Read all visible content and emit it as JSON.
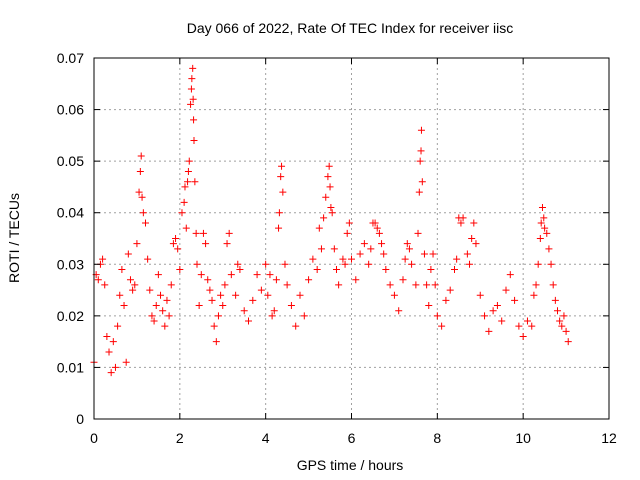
{
  "chart_data": {
    "type": "scatter",
    "title": "Day 066 of 2022, Rate Of TEC Index for receiver iisc",
    "xlabel": "GPS time / hours",
    "ylabel": "ROTI / TECUs",
    "xlim": [
      0,
      12
    ],
    "ylim": [
      0,
      0.07
    ],
    "x_ticks": [
      "0",
      "2",
      "4",
      "6",
      "8",
      "10",
      "12"
    ],
    "y_ticks": [
      "0",
      "0.01",
      "0.02",
      "0.03",
      "0.04",
      "0.05",
      "0.06",
      "0.07"
    ],
    "grid": true,
    "marker": "+",
    "color": "#ff0000",
    "series": [
      {
        "name": "ROTI",
        "points": [
          [
            0.0,
            0.011
          ],
          [
            0.05,
            0.028
          ],
          [
            0.1,
            0.027
          ],
          [
            0.15,
            0.03
          ],
          [
            0.2,
            0.031
          ],
          [
            0.25,
            0.026
          ],
          [
            0.3,
            0.016
          ],
          [
            0.35,
            0.013
          ],
          [
            0.4,
            0.009
          ],
          [
            0.45,
            0.015
          ],
          [
            0.5,
            0.01
          ],
          [
            0.55,
            0.018
          ],
          [
            0.6,
            0.024
          ],
          [
            0.65,
            0.029
          ],
          [
            0.7,
            0.022
          ],
          [
            0.75,
            0.011
          ],
          [
            0.8,
            0.032
          ],
          [
            0.85,
            0.027
          ],
          [
            0.9,
            0.025
          ],
          [
            0.95,
            0.026
          ],
          [
            1.0,
            0.034
          ],
          [
            1.05,
            0.044
          ],
          [
            1.08,
            0.048
          ],
          [
            1.1,
            0.051
          ],
          [
            1.12,
            0.043
          ],
          [
            1.15,
            0.04
          ],
          [
            1.2,
            0.038
          ],
          [
            1.25,
            0.031
          ],
          [
            1.3,
            0.025
          ],
          [
            1.35,
            0.02
          ],
          [
            1.4,
            0.019
          ],
          [
            1.45,
            0.022
          ],
          [
            1.5,
            0.028
          ],
          [
            1.55,
            0.024
          ],
          [
            1.6,
            0.021
          ],
          [
            1.65,
            0.018
          ],
          [
            1.7,
            0.023
          ],
          [
            1.75,
            0.02
          ],
          [
            1.8,
            0.026
          ],
          [
            1.85,
            0.034
          ],
          [
            1.9,
            0.035
          ],
          [
            1.95,
            0.033
          ],
          [
            2.0,
            0.029
          ],
          [
            2.05,
            0.04
          ],
          [
            2.1,
            0.042
          ],
          [
            2.12,
            0.045
          ],
          [
            2.15,
            0.037
          ],
          [
            2.18,
            0.046
          ],
          [
            2.2,
            0.048
          ],
          [
            2.22,
            0.05
          ],
          [
            2.25,
            0.061
          ],
          [
            2.27,
            0.064
          ],
          [
            2.28,
            0.066
          ],
          [
            2.3,
            0.068
          ],
          [
            2.31,
            0.062
          ],
          [
            2.32,
            0.058
          ],
          [
            2.33,
            0.054
          ],
          [
            2.35,
            0.046
          ],
          [
            2.38,
            0.036
          ],
          [
            2.4,
            0.03
          ],
          [
            2.45,
            0.022
          ],
          [
            2.5,
            0.028
          ],
          [
            2.55,
            0.036
          ],
          [
            2.6,
            0.034
          ],
          [
            2.65,
            0.027
          ],
          [
            2.7,
            0.025
          ],
          [
            2.75,
            0.023
          ],
          [
            2.8,
            0.018
          ],
          [
            2.85,
            0.015
          ],
          [
            2.9,
            0.02
          ],
          [
            2.95,
            0.024
          ],
          [
            3.0,
            0.022
          ],
          [
            3.05,
            0.026
          ],
          [
            3.1,
            0.034
          ],
          [
            3.15,
            0.036
          ],
          [
            3.2,
            0.028
          ],
          [
            3.3,
            0.024
          ],
          [
            3.35,
            0.03
          ],
          [
            3.4,
            0.029
          ],
          [
            3.5,
            0.021
          ],
          [
            3.6,
            0.019
          ],
          [
            3.7,
            0.023
          ],
          [
            3.8,
            0.028
          ],
          [
            3.9,
            0.025
          ],
          [
            4.0,
            0.03
          ],
          [
            4.05,
            0.024
          ],
          [
            4.1,
            0.028
          ],
          [
            4.15,
            0.02
          ],
          [
            4.2,
            0.021
          ],
          [
            4.25,
            0.027
          ],
          [
            4.3,
            0.037
          ],
          [
            4.32,
            0.04
          ],
          [
            4.35,
            0.047
          ],
          [
            4.37,
            0.049
          ],
          [
            4.4,
            0.044
          ],
          [
            4.45,
            0.03
          ],
          [
            4.5,
            0.026
          ],
          [
            4.6,
            0.022
          ],
          [
            4.7,
            0.018
          ],
          [
            4.8,
            0.024
          ],
          [
            4.9,
            0.02
          ],
          [
            5.0,
            0.027
          ],
          [
            5.1,
            0.031
          ],
          [
            5.2,
            0.029
          ],
          [
            5.25,
            0.037
          ],
          [
            5.3,
            0.033
          ],
          [
            5.35,
            0.039
          ],
          [
            5.4,
            0.043
          ],
          [
            5.45,
            0.047
          ],
          [
            5.48,
            0.049
          ],
          [
            5.5,
            0.045
          ],
          [
            5.52,
            0.041
          ],
          [
            5.55,
            0.04
          ],
          [
            5.6,
            0.033
          ],
          [
            5.65,
            0.029
          ],
          [
            5.7,
            0.026
          ],
          [
            5.8,
            0.031
          ],
          [
            5.85,
            0.03
          ],
          [
            5.9,
            0.036
          ],
          [
            5.95,
            0.038
          ],
          [
            6.0,
            0.031
          ],
          [
            6.1,
            0.027
          ],
          [
            6.2,
            0.032
          ],
          [
            6.3,
            0.034
          ],
          [
            6.4,
            0.03
          ],
          [
            6.45,
            0.033
          ],
          [
            6.5,
            0.038
          ],
          [
            6.55,
            0.038
          ],
          [
            6.6,
            0.037
          ],
          [
            6.65,
            0.036
          ],
          [
            6.7,
            0.034
          ],
          [
            6.75,
            0.032
          ],
          [
            6.8,
            0.029
          ],
          [
            6.9,
            0.026
          ],
          [
            7.0,
            0.024
          ],
          [
            7.1,
            0.021
          ],
          [
            7.2,
            0.027
          ],
          [
            7.25,
            0.031
          ],
          [
            7.3,
            0.034
          ],
          [
            7.35,
            0.033
          ],
          [
            7.4,
            0.03
          ],
          [
            7.5,
            0.026
          ],
          [
            7.55,
            0.036
          ],
          [
            7.58,
            0.044
          ],
          [
            7.6,
            0.05
          ],
          [
            7.62,
            0.052
          ],
          [
            7.63,
            0.056
          ],
          [
            7.65,
            0.046
          ],
          [
            7.7,
            0.032
          ],
          [
            7.75,
            0.026
          ],
          [
            7.8,
            0.022
          ],
          [
            7.85,
            0.029
          ],
          [
            7.9,
            0.032
          ],
          [
            7.95,
            0.026
          ],
          [
            8.0,
            0.02
          ],
          [
            8.1,
            0.018
          ],
          [
            8.2,
            0.023
          ],
          [
            8.3,
            0.025
          ],
          [
            8.4,
            0.029
          ],
          [
            8.45,
            0.031
          ],
          [
            8.5,
            0.039
          ],
          [
            8.55,
            0.038
          ],
          [
            8.6,
            0.039
          ],
          [
            8.7,
            0.032
          ],
          [
            8.75,
            0.03
          ],
          [
            8.8,
            0.035
          ],
          [
            8.85,
            0.038
          ],
          [
            8.9,
            0.034
          ],
          [
            9.0,
            0.024
          ],
          [
            9.1,
            0.02
          ],
          [
            9.2,
            0.017
          ],
          [
            9.3,
            0.021
          ],
          [
            9.4,
            0.022
          ],
          [
            9.5,
            0.019
          ],
          [
            9.6,
            0.025
          ],
          [
            9.7,
            0.028
          ],
          [
            9.8,
            0.023
          ],
          [
            9.9,
            0.018
          ],
          [
            10.0,
            0.016
          ],
          [
            10.1,
            0.019
          ],
          [
            10.2,
            0.018
          ],
          [
            10.25,
            0.024
          ],
          [
            10.3,
            0.026
          ],
          [
            10.35,
            0.03
          ],
          [
            10.4,
            0.035
          ],
          [
            10.42,
            0.038
          ],
          [
            10.45,
            0.041
          ],
          [
            10.48,
            0.039
          ],
          [
            10.5,
            0.037
          ],
          [
            10.55,
            0.036
          ],
          [
            10.6,
            0.033
          ],
          [
            10.65,
            0.03
          ],
          [
            10.7,
            0.026
          ],
          [
            10.75,
            0.023
          ],
          [
            10.8,
            0.021
          ],
          [
            10.85,
            0.019
          ],
          [
            10.9,
            0.018
          ],
          [
            10.95,
            0.02
          ],
          [
            11.0,
            0.017
          ],
          [
            11.05,
            0.015
          ]
        ]
      }
    ]
  }
}
